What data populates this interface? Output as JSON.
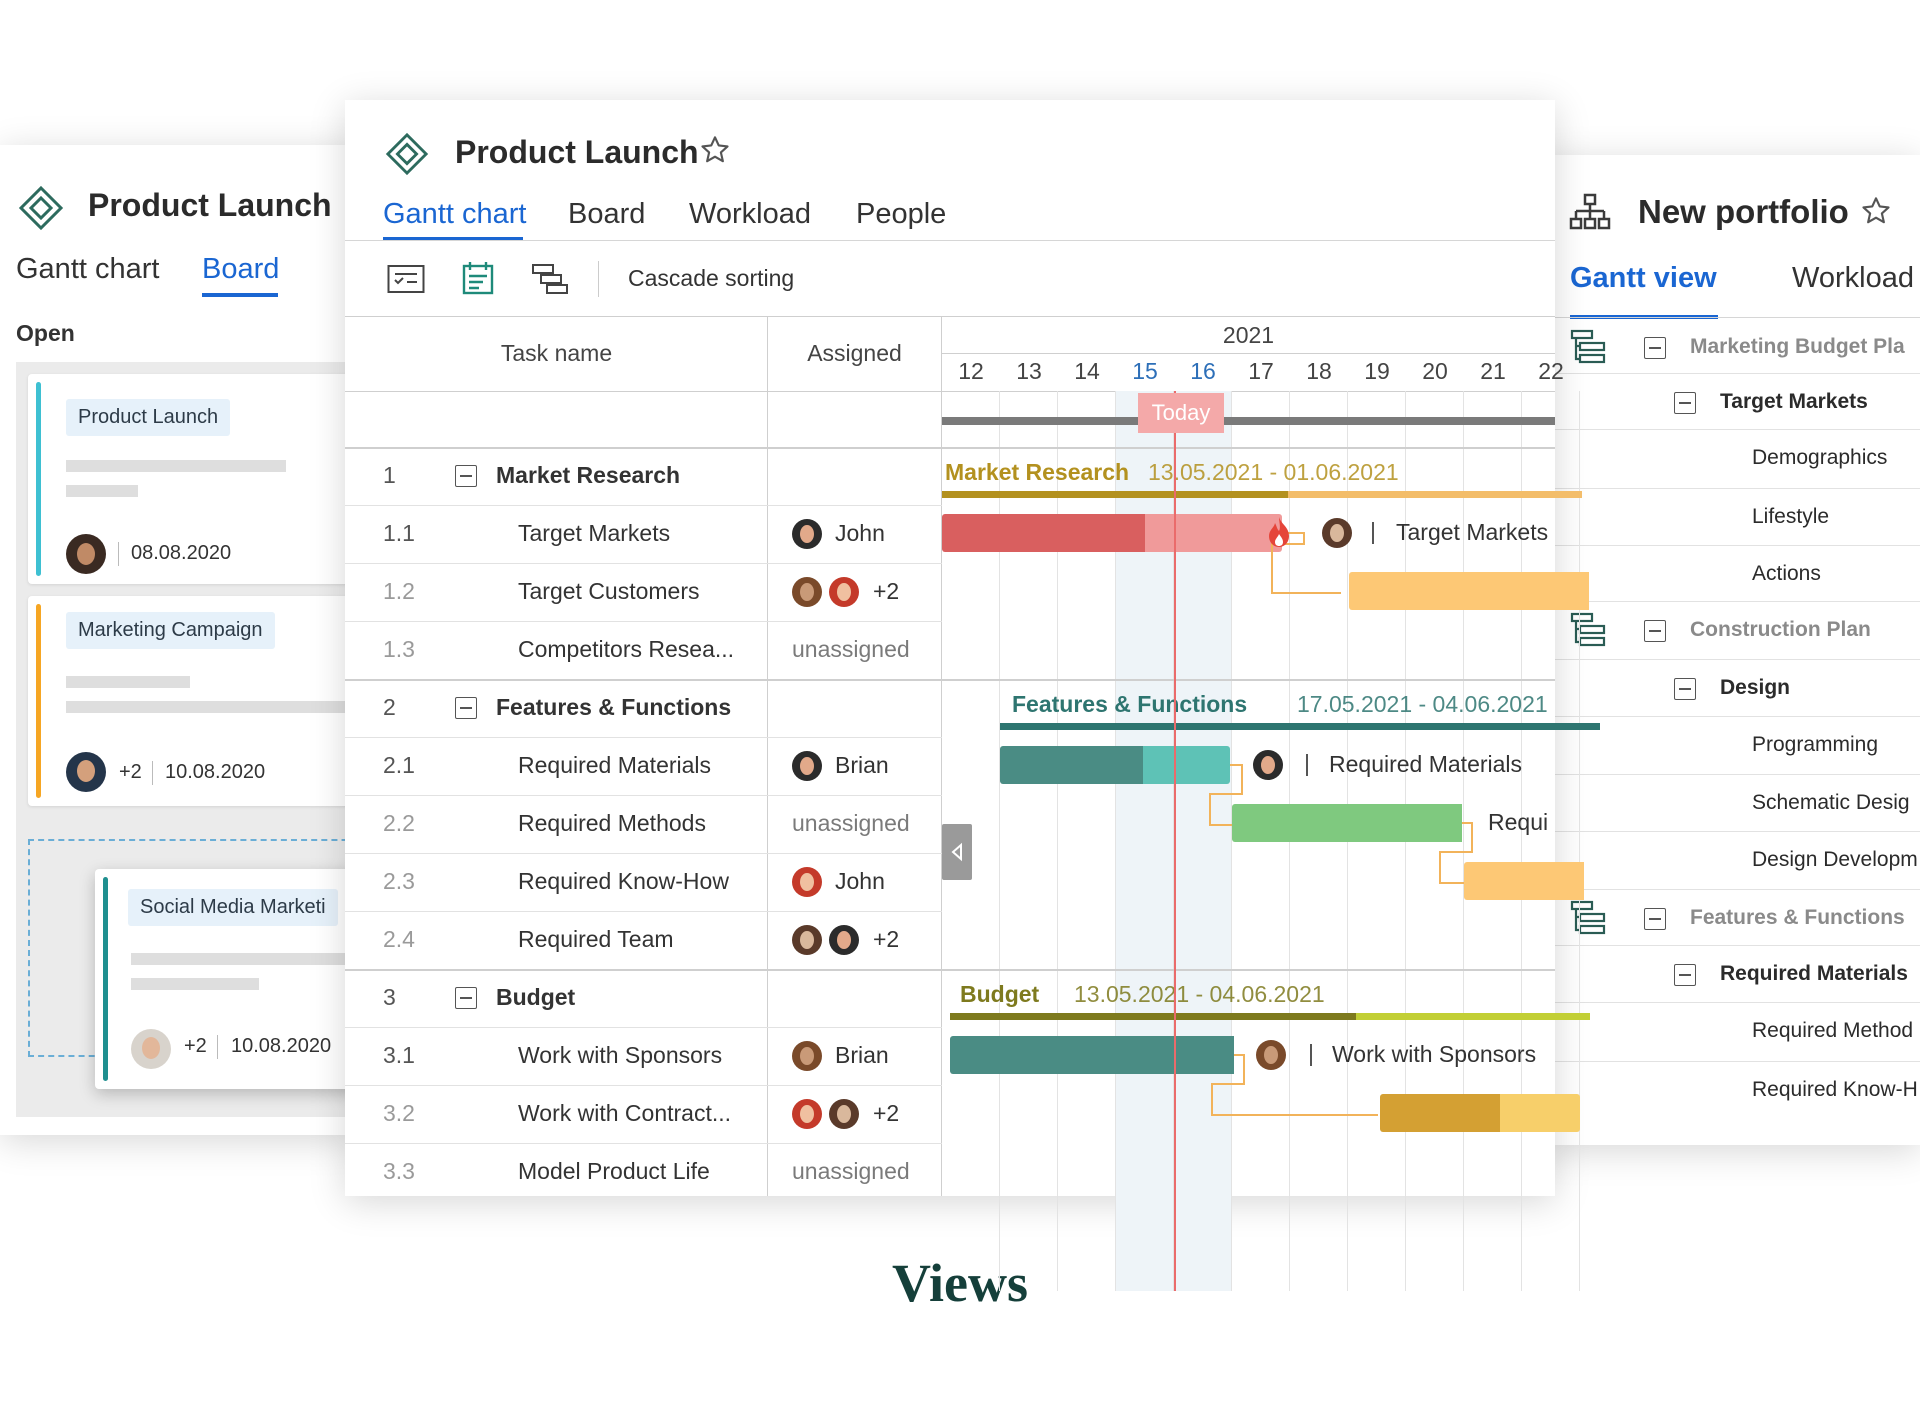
{
  "left_board": {
    "title": "Product Launch",
    "tabs": [
      "Gantt chart",
      "Board"
    ],
    "active_tab": "Board",
    "column_title": "Open",
    "cards": [
      {
        "label": "Product Launch",
        "date": "08.08.2020",
        "stripe_color": "#3ec0d2"
      },
      {
        "label": "Marketing Campaign",
        "extra": "+2",
        "date": "10.08.2020",
        "stripe_color": "#f6a623"
      },
      {
        "label": "Social Media Marketi",
        "extra": "+2",
        "date": "10.08.2020",
        "stripe_color": "#1f8f8f"
      }
    ]
  },
  "gantt": {
    "title": "Product Launch",
    "tabs": [
      "Gantt chart",
      "Board",
      "Workload",
      "People"
    ],
    "active_tab": "Gantt chart",
    "toolbar": {
      "cascade_label": "Cascade sorting"
    },
    "columns": {
      "task": "Task name",
      "assigned": "Assigned"
    },
    "year": "2021",
    "days": [
      "12",
      "13",
      "14",
      "15",
      "16",
      "17",
      "18",
      "19",
      "20",
      "21",
      "22"
    ],
    "highlighted_days": [
      "15",
      "16"
    ],
    "today_label": "Today",
    "rows": [
      {
        "num": "1",
        "name": "Market Research",
        "group": true
      },
      {
        "num": "1.1",
        "name": "Target Markets",
        "assigned": "John"
      },
      {
        "num": "1.2",
        "name": "Target Customers",
        "assigned": "+2"
      },
      {
        "num": "1.3",
        "name": "Competitors Resea...",
        "assigned": "unassigned"
      },
      {
        "num": "2",
        "name": "Features & Functions",
        "group": true
      },
      {
        "num": "2.1",
        "name": "Required Materials",
        "assigned": "Brian"
      },
      {
        "num": "2.2",
        "name": "Required Methods",
        "assigned": "unassigned"
      },
      {
        "num": "2.3",
        "name": "Required Know-How",
        "assigned": "John"
      },
      {
        "num": "2.4",
        "name": "Required Team",
        "assigned": "+2"
      },
      {
        "num": "3",
        "name": "Budget",
        "group": true
      },
      {
        "num": "3.1",
        "name": "Work with Sponsors",
        "assigned": "Brian"
      },
      {
        "num": "3.2",
        "name": "Work with Contract...",
        "assigned": "+2"
      },
      {
        "num": "3.3",
        "name": "Model Product Life",
        "assigned": "unassigned"
      }
    ],
    "group_bars": [
      {
        "name": "Market Research",
        "dates": "13.05.2021 - 01.06.2021",
        "color": "#b3911f"
      },
      {
        "name": "Features & Functions",
        "dates": "17.05.2021 - 04.06.2021",
        "color": "#2e7570"
      },
      {
        "name": "Budget",
        "dates": "13.05.2021 - 04.06.2021",
        "color": "#7e7a1e"
      }
    ],
    "task_labels": {
      "t11": "Target Markets",
      "t21": "Required Materials",
      "t22": "Requi",
      "t31": "Work with Sponsors"
    }
  },
  "portfolio": {
    "title": "New portfolio",
    "tabs": [
      "Gantt view",
      "Workload"
    ],
    "active_tab": "Gantt view",
    "rows": [
      {
        "text": "Marketing Budget Pla",
        "level": "project"
      },
      {
        "text": "Target Markets",
        "level": "group"
      },
      {
        "text": "Demographics",
        "level": "task"
      },
      {
        "text": "Lifestyle",
        "level": "task"
      },
      {
        "text": "Actions",
        "level": "task"
      },
      {
        "text": "Construction Plan",
        "level": "project"
      },
      {
        "text": "Design",
        "level": "group"
      },
      {
        "text": "Programming",
        "level": "task"
      },
      {
        "text": "Schematic Desig",
        "level": "task"
      },
      {
        "text": "Design Developm",
        "level": "task"
      },
      {
        "text": "Features & Functions",
        "level": "project"
      },
      {
        "text": "Required Materials",
        "level": "group"
      },
      {
        "text": "Required Method",
        "level": "task"
      },
      {
        "text": "Required Know-H",
        "level": "task"
      }
    ]
  },
  "footer": {
    "caption": "Views"
  }
}
